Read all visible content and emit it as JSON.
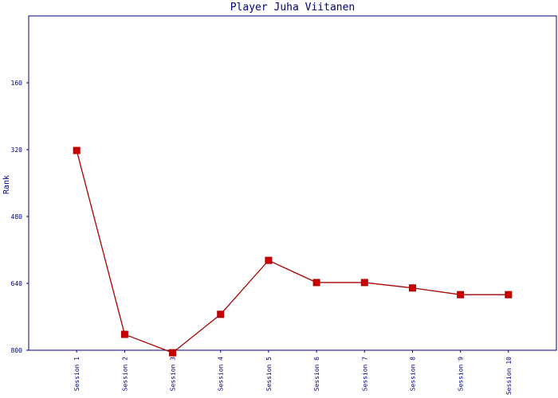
{
  "chart_data": {
    "type": "line",
    "title": "Player Juha Viitanen",
    "y_label": "Rank",
    "categories": [
      "Session 1",
      "Session 2",
      "Session 3",
      "Session 4",
      "Session 5",
      "Session 6",
      "Session 7",
      "Session 8",
      "Session 9",
      "Session 10"
    ],
    "series": [
      {
        "name": "Rank",
        "color": "#aa0000",
        "values": [
          322,
          762,
          806,
          714,
          585,
          638,
          638,
          651,
          667,
          667
        ]
      }
    ],
    "ylim": [
      800,
      0
    ],
    "yticks": [
      160,
      320,
      480,
      640,
      800
    ]
  }
}
